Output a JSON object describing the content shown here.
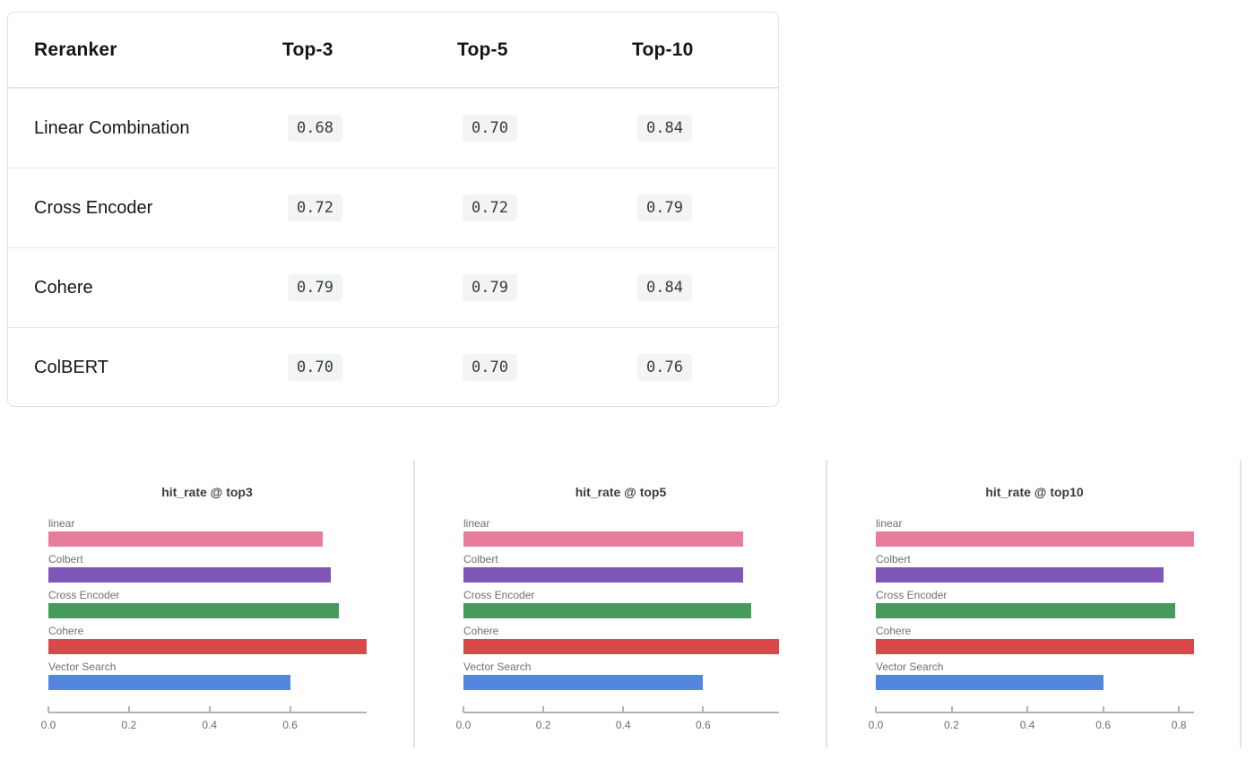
{
  "table": {
    "columns": [
      "Reranker",
      "Top-3",
      "Top-5",
      "Top-10"
    ],
    "rows": [
      {
        "name": "Linear Combination",
        "values": [
          "0.68",
          "0.70",
          "0.84"
        ]
      },
      {
        "name": "Cross Encoder",
        "values": [
          "0.72",
          "0.72",
          "0.79"
        ]
      },
      {
        "name": "Cohere",
        "values": [
          "0.79",
          "0.79",
          "0.84"
        ]
      },
      {
        "name": "ColBERT",
        "values": [
          "0.70",
          "0.70",
          "0.76"
        ]
      }
    ],
    "value_chip_bg": "#f4f4f4",
    "value_text_color": "#2f3e46"
  },
  "chart_data": [
    {
      "type": "bar",
      "orientation": "horizontal",
      "title": "hit_rate @ top3",
      "categories": [
        "linear",
        "Colbert",
        "Cross Encoder",
        "Cohere",
        "Vector Search"
      ],
      "values": [
        0.68,
        0.7,
        0.72,
        0.79,
        0.6
      ],
      "colors": [
        "#e77d9b",
        "#7e56b8",
        "#459a5c",
        "#d84a49",
        "#5286e0"
      ],
      "xlim": [
        0,
        0.79
      ],
      "xticks": [
        0.0,
        0.2,
        0.4,
        0.6
      ],
      "tick_labels": [
        "0.0",
        "0.2",
        "0.4",
        "0.6"
      ],
      "xlabel": "",
      "ylabel": "",
      "grid": false,
      "legend": "none"
    },
    {
      "type": "bar",
      "orientation": "horizontal",
      "title": "hit_rate @ top5",
      "categories": [
        "linear",
        "Colbert",
        "Cross Encoder",
        "Cohere",
        "Vector Search"
      ],
      "values": [
        0.7,
        0.7,
        0.72,
        0.79,
        0.6
      ],
      "colors": [
        "#e77d9b",
        "#7e56b8",
        "#459a5c",
        "#d84a49",
        "#5286e0"
      ],
      "xlim": [
        0,
        0.79
      ],
      "xticks": [
        0.0,
        0.2,
        0.4,
        0.6
      ],
      "tick_labels": [
        "0.0",
        "0.2",
        "0.4",
        "0.6"
      ],
      "xlabel": "",
      "ylabel": "",
      "grid": false,
      "legend": "none"
    },
    {
      "type": "bar",
      "orientation": "horizontal",
      "title": "hit_rate @ top10",
      "categories": [
        "linear",
        "Colbert",
        "Cross Encoder",
        "Cohere",
        "Vector Search"
      ],
      "values": [
        0.84,
        0.76,
        0.79,
        0.84,
        0.6
      ],
      "colors": [
        "#e77d9b",
        "#7e56b8",
        "#459a5c",
        "#d84a49",
        "#5286e0"
      ],
      "xlim": [
        0,
        0.84
      ],
      "xticks": [
        0.0,
        0.2,
        0.4,
        0.6,
        0.8
      ],
      "tick_labels": [
        "0.0",
        "0.2",
        "0.4",
        "0.6",
        "0.8"
      ],
      "xlabel": "",
      "ylabel": "",
      "grid": false,
      "legend": "none"
    }
  ]
}
